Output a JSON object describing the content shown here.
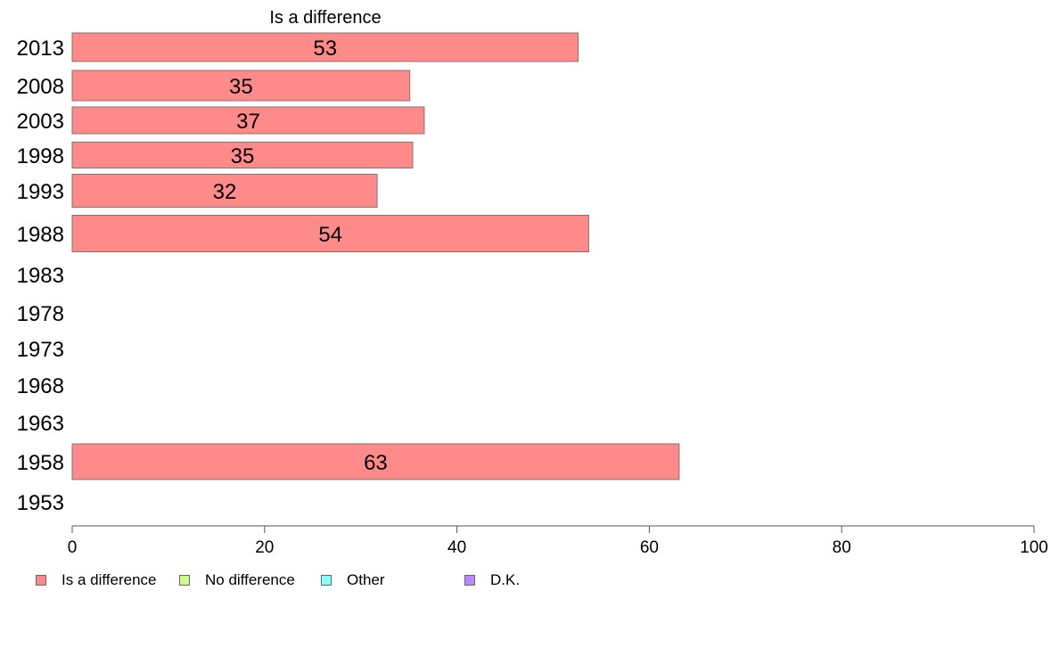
{
  "chart_data": {
    "type": "bar",
    "orientation": "horizontal",
    "title": "Is a difference",
    "categories": [
      "2013",
      "2008",
      "2003",
      "1998",
      "1993",
      "1988",
      "1983",
      "1978",
      "1973",
      "1968",
      "1963",
      "1958",
      "1953"
    ],
    "series": [
      {
        "name": "Is a difference",
        "color": "#ff8a8a",
        "values": [
          52.6,
          35.1,
          36.6,
          35.4,
          31.7,
          53.7,
          null,
          null,
          null,
          null,
          null,
          63.1,
          null
        ],
        "labels": [
          "53",
          "35",
          "37",
          "35",
          "32",
          "54",
          "",
          "",
          "",
          "",
          "",
          "63",
          ""
        ]
      }
    ],
    "xlim": [
      0,
      100
    ],
    "xticks": [
      "0",
      "20",
      "40",
      "60",
      "80",
      "100"
    ],
    "grid": false,
    "legend": {
      "position": "bottom-left",
      "items": [
        {
          "label": "Is a difference",
          "color": "#ff8a8a"
        },
        {
          "label": "No difference",
          "color": "#c8ff8a"
        },
        {
          "label": "Other",
          "color": "#8affff"
        },
        {
          "label": "D.K.",
          "color": "#b98aff"
        }
      ]
    }
  }
}
